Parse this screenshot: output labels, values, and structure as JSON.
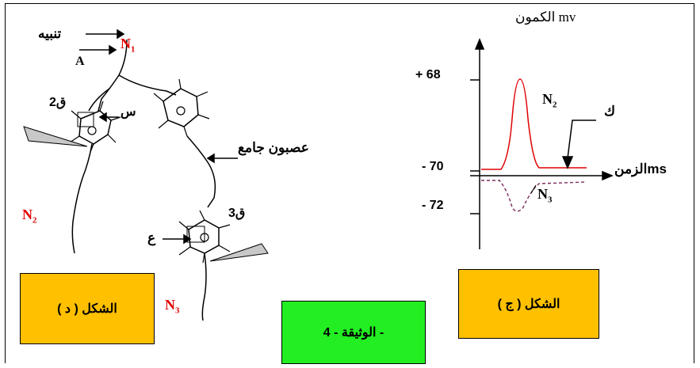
{
  "left_figure": {
    "stimulus_label": "تنبيه",
    "n1_label": "N1",
    "a_label": "A",
    "q2_label": "ق2",
    "s_label": "س",
    "interneuron_label": "عصبون جامع",
    "n2_label": "N2",
    "q3_label": "ق3",
    "ain_label": "ع",
    "n3_label": "N3",
    "caption": "الشكل ( د )"
  },
  "right_figure": {
    "y_axis_label": "الكمون mv",
    "x_axis_label": "الزمنms",
    "n2_trace_label": "N2",
    "n3_trace_label": "N3",
    "k_label": "ك",
    "caption": "الشكل ( ج )"
  },
  "document_label": "الوثيقة - 4 -",
  "colors": {
    "caption_bg": "#ffc000",
    "document_bg": "#22ee22",
    "n_label": "#e00000",
    "n2_trace": "#e00000",
    "n3_trace": "#7a2a5a"
  },
  "chart_data": {
    "type": "line",
    "xlabel": "الزمنms",
    "ylabel": "الكمون mv",
    "y_ticks": [
      "+ 68",
      "- 70",
      "- 72"
    ],
    "series": [
      {
        "name": "N2",
        "description_shape": "depolarization spike to +68 mV then return to -70 mV"
      },
      {
        "name": "N3",
        "description_shape": "hyperpolarization dip toward -72 mV then return to -70 mV"
      }
    ]
  }
}
